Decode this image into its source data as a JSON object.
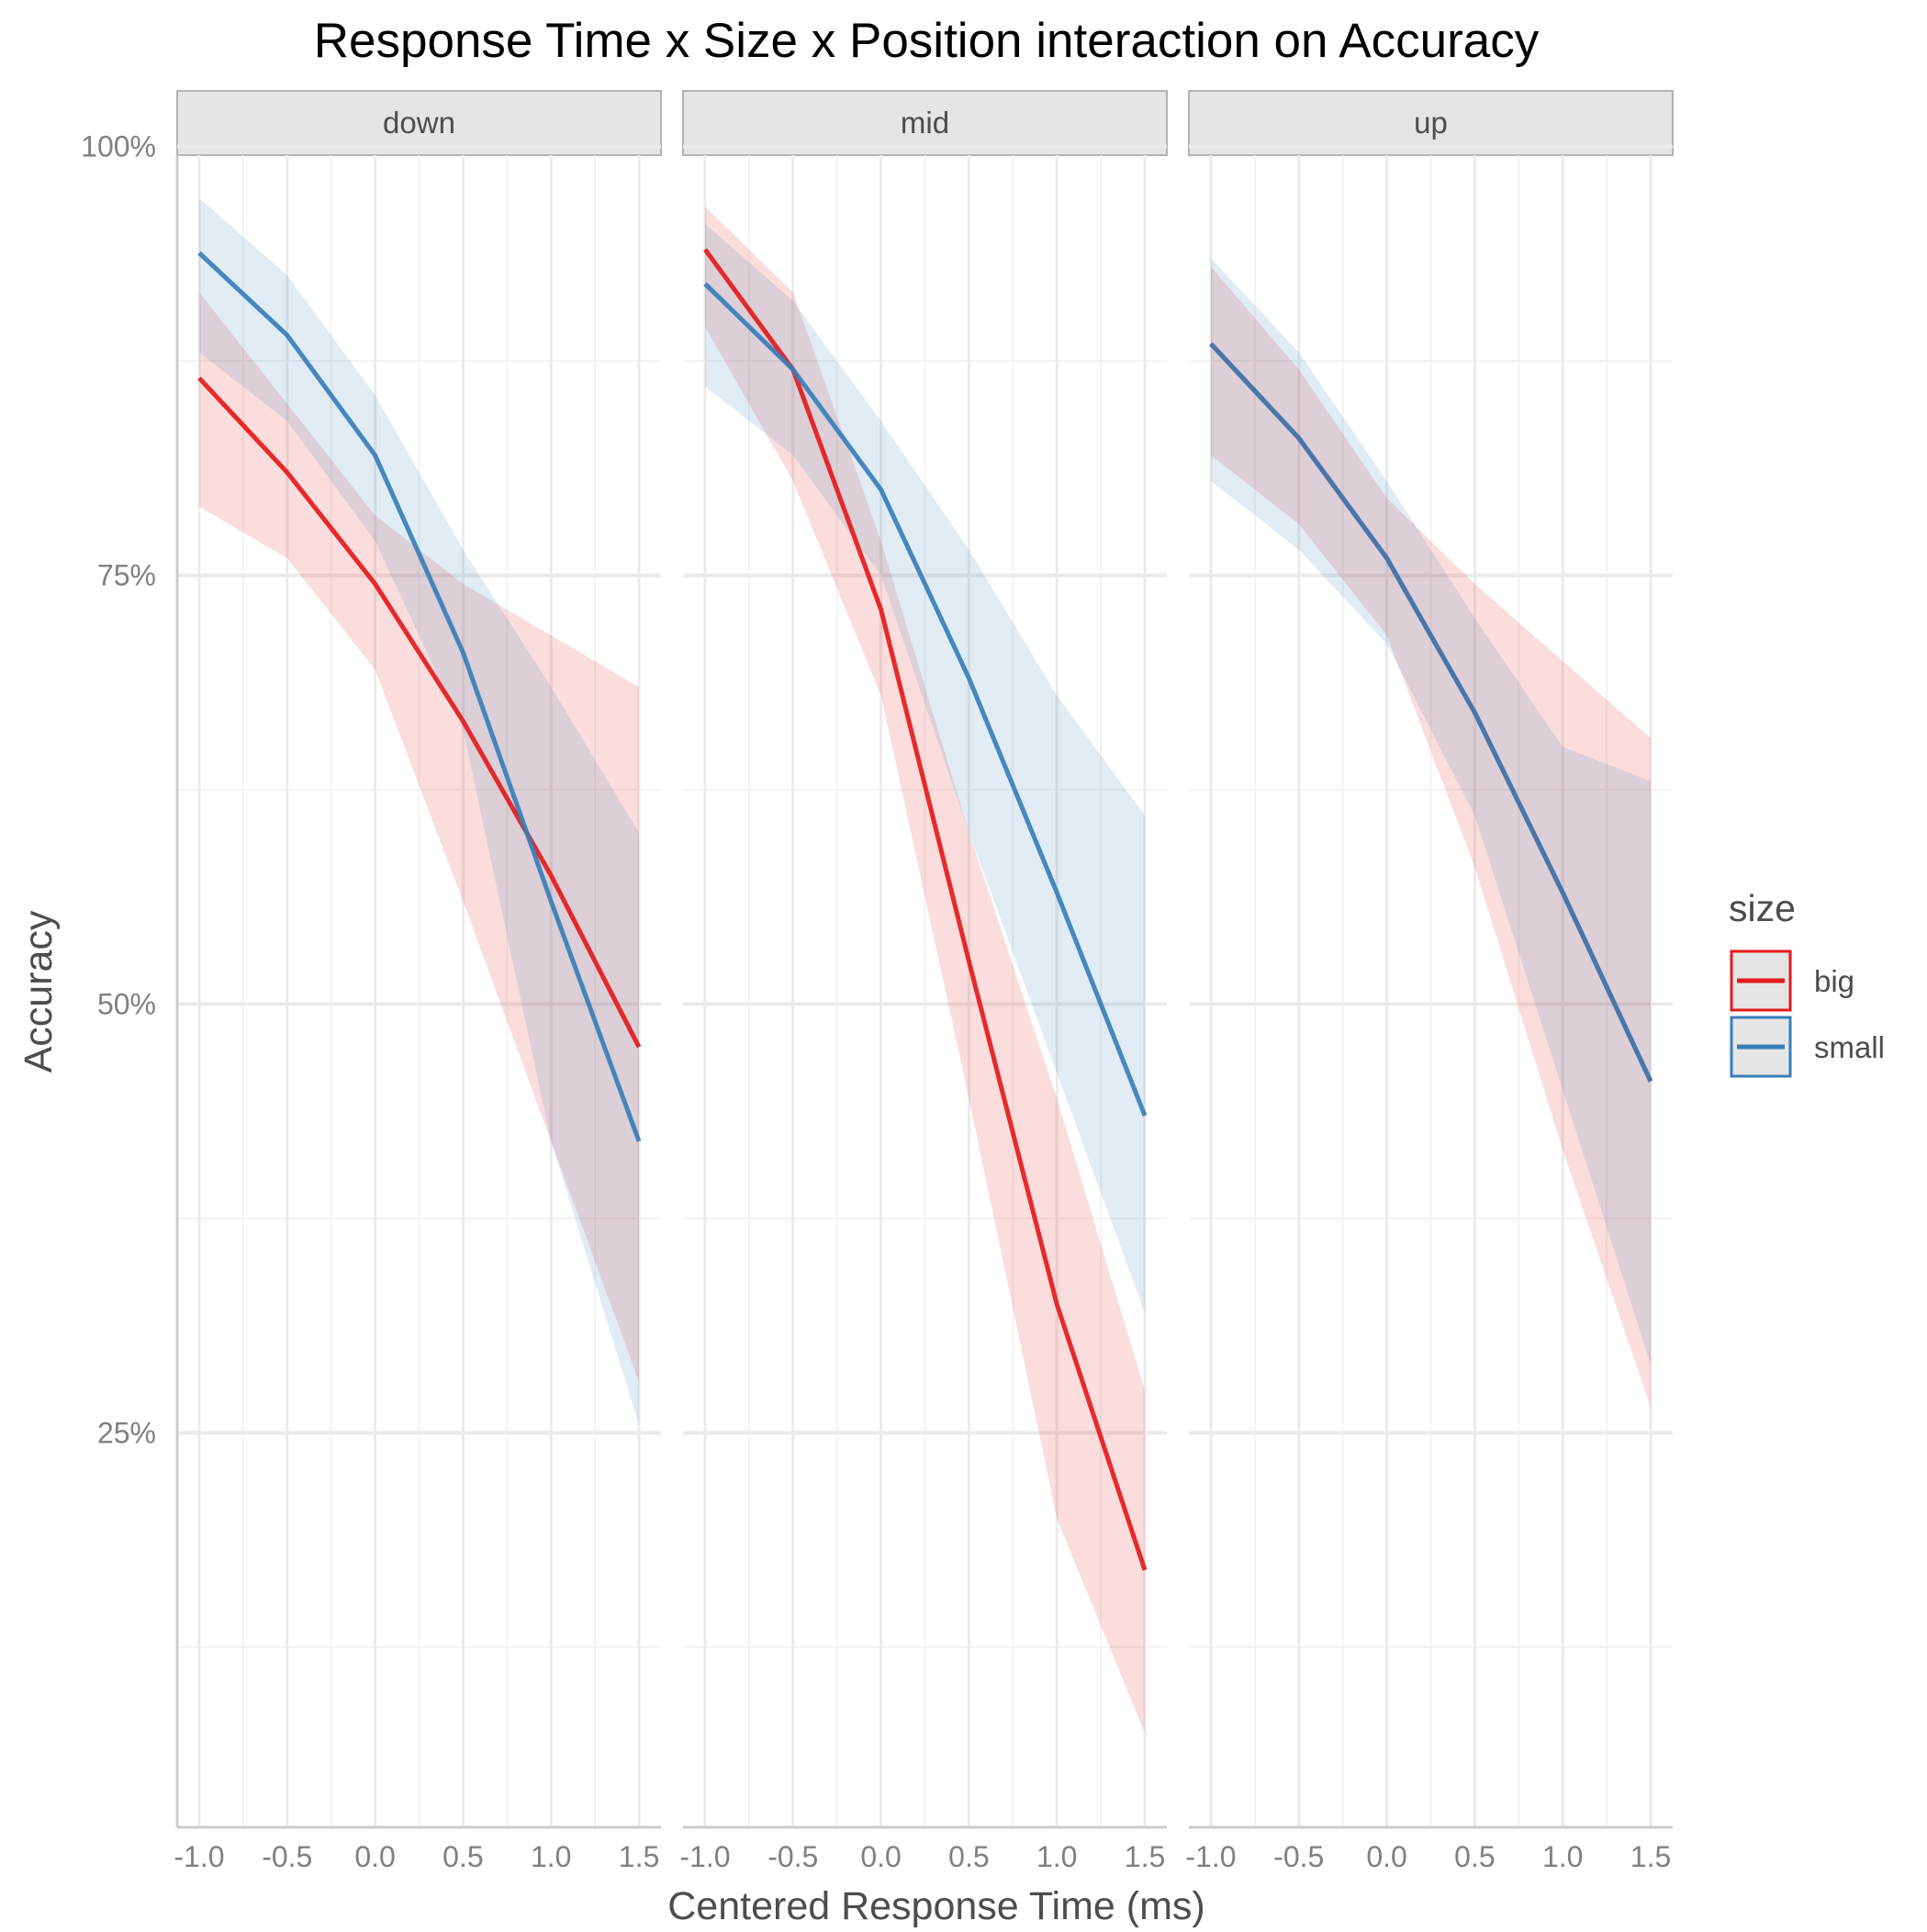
{
  "chart_data": {
    "type": "line",
    "title": "Response Time x Size x Position interaction on Accuracy",
    "xlabel": "Centered Response Time (ms)",
    "ylabel": "Accuracy",
    "x": [
      -1.0,
      -0.5,
      0.0,
      0.5,
      1.0,
      1.5
    ],
    "x_tick_labels": [
      "-1.0",
      "-0.5",
      "0.0",
      "0.5",
      "1.0",
      "1.5"
    ],
    "y_ticks": [
      0.25,
      0.5,
      0.75,
      1.0
    ],
    "y_tick_labels": [
      "25%",
      "50%",
      "75%",
      "100%"
    ],
    "xlim": [
      -1.125,
      1.625
    ],
    "ylim": [
      0.02,
      0.995
    ],
    "grid": true,
    "legend": {
      "title": "size",
      "position": "right",
      "entries": [
        {
          "label": "big",
          "color": "#e41a1c"
        },
        {
          "label": "small",
          "color": "#377eb8"
        }
      ]
    },
    "facets": [
      {
        "label": "down",
        "series": [
          {
            "name": "big",
            "values": [
              0.865,
              0.81,
              0.745,
              0.665,
              0.575,
              0.475
            ],
            "lower": [
              0.79,
              0.76,
              0.695,
              0.56,
              0.42,
              0.28
            ],
            "upper": [
              0.915,
              0.85,
              0.785,
              0.745,
              0.715,
              0.685
            ]
          },
          {
            "name": "small",
            "values": [
              0.938,
              0.89,
              0.82,
              0.705,
              0.56,
              0.42
            ],
            "lower": [
              0.88,
              0.84,
              0.77,
              0.66,
              0.42,
              0.255
            ],
            "upper": [
              0.97,
              0.925,
              0.855,
              0.765,
              0.685,
              0.6
            ]
          }
        ]
      },
      {
        "label": "mid",
        "series": [
          {
            "name": "big",
            "values": [
              0.94,
              0.87,
              0.73,
              0.525,
              0.325,
              0.17
            ],
            "lower": [
              0.895,
              0.805,
              0.68,
              0.445,
              0.2,
              0.075
            ],
            "upper": [
              0.965,
              0.915,
              0.77,
              0.6,
              0.445,
              0.275
            ]
          },
          {
            "name": "small",
            "values": [
              0.92,
              0.87,
              0.8,
              0.69,
              0.565,
              0.435
            ],
            "lower": [
              0.86,
              0.82,
              0.75,
              0.6,
              0.46,
              0.32
            ],
            "upper": [
              0.955,
              0.91,
              0.84,
              0.765,
              0.68,
              0.61
            ]
          }
        ]
      },
      {
        "label": "up",
        "series": [
          {
            "name": "big",
            "values": [
              0.885,
              0.83,
              0.76,
              0.67,
              0.565,
              0.455
            ],
            "lower": [
              0.82,
              0.78,
              0.715,
              0.58,
              0.415,
              0.265
            ],
            "upper": [
              0.93,
              0.87,
              0.795,
              0.745,
              0.7,
              0.655
            ]
          },
          {
            "name": "small",
            "values": [
              0.885,
              0.83,
              0.76,
              0.67,
              0.565,
              0.455
            ],
            "lower": [
              0.805,
              0.765,
              0.71,
              0.61,
              0.45,
              0.29
            ],
            "upper": [
              0.935,
              0.88,
              0.805,
              0.725,
              0.65,
              0.63
            ]
          }
        ]
      }
    ]
  }
}
